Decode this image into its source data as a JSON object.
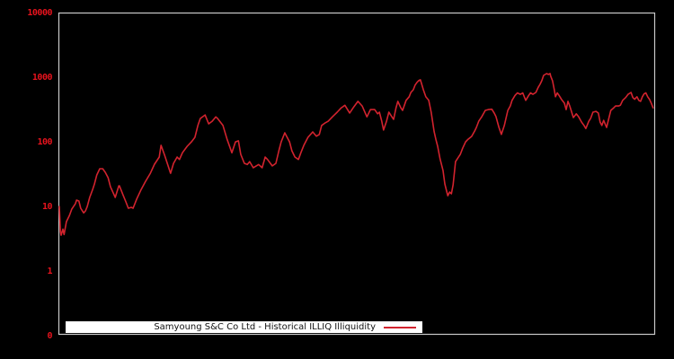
{
  "legend": {
    "label": "Samyoung S&C Co Ltd - Historical ILLIQ Illiquidity"
  },
  "colors": {
    "background": "#000000",
    "line": "#d2232e",
    "tick_label": "#e8131d",
    "plot_border": "#c9c9c9",
    "legend_bg": "#ffffff",
    "legend_text": "#111111"
  },
  "y_axis": {
    "tick_labels": [
      "10000",
      "1000",
      "100",
      "10",
      "1",
      "0"
    ]
  },
  "chart_data": {
    "type": "line",
    "title": "",
    "xlabel": "",
    "ylabel": "",
    "y_scale": "log",
    "ylim": [
      0.1,
      10000
    ],
    "yticks": [
      10000,
      1000,
      100,
      10,
      1,
      0
    ],
    "grid": false,
    "legend_position": "bottom",
    "x_unit": "percent_of_time_range",
    "series": [
      {
        "name": "Samyoung S&C Co Ltd - Historical ILLIQ Illiquidity",
        "points": [
          [
            0,
            10.3
          ],
          [
            0.2,
            4.2
          ],
          [
            0.3,
            3.7
          ],
          [
            0.6,
            4.6
          ],
          [
            0.8,
            3.8
          ],
          [
            1.2,
            6
          ],
          [
            1.7,
            7.5
          ],
          [
            2.1,
            9.4
          ],
          [
            2.7,
            11.4
          ],
          [
            2.9,
            12.9
          ],
          [
            3.3,
            12.5
          ],
          [
            3.6,
            9.7
          ],
          [
            4.1,
            8.2
          ],
          [
            4.4,
            8.8
          ],
          [
            4.7,
            10.3
          ],
          [
            5.1,
            14.2
          ],
          [
            5.6,
            18.9
          ],
          [
            5.9,
            23
          ],
          [
            6.3,
            31.6
          ],
          [
            6.8,
            39.5
          ],
          [
            7.3,
            39.5
          ],
          [
            7.7,
            35
          ],
          [
            8.2,
            28.7
          ],
          [
            8.6,
            20.8
          ],
          [
            9.2,
            15.7
          ],
          [
            9.4,
            14.2
          ],
          [
            10,
            21.5
          ],
          [
            10.1,
            21.5
          ],
          [
            10.7,
            15.7
          ],
          [
            11.2,
            12.1
          ],
          [
            11.6,
            9.7
          ],
          [
            12.1,
            10
          ],
          [
            12.4,
            9.7
          ],
          [
            13,
            13.4
          ],
          [
            13.7,
            18.4
          ],
          [
            14.5,
            25.3
          ],
          [
            15.3,
            33.6
          ],
          [
            16,
            46.4
          ],
          [
            16.8,
            60
          ],
          [
            17.1,
            91
          ],
          [
            17.7,
            64
          ],
          [
            18.3,
            43.7
          ],
          [
            18.7,
            33.6
          ],
          [
            19.2,
            47.9
          ],
          [
            19.8,
            60
          ],
          [
            20.2,
            55
          ],
          [
            20.7,
            70
          ],
          [
            21.5,
            88
          ],
          [
            22.2,
            103
          ],
          [
            22.8,
            121
          ],
          [
            23.3,
            185
          ],
          [
            23.7,
            237
          ],
          [
            24.5,
            269
          ],
          [
            25.1,
            196
          ],
          [
            25.7,
            215
          ],
          [
            26.3,
            251
          ],
          [
            26.6,
            237
          ],
          [
            27.5,
            185
          ],
          [
            28.2,
            113
          ],
          [
            29,
            70
          ],
          [
            29.6,
            103
          ],
          [
            30.1,
            107
          ],
          [
            30.5,
            66
          ],
          [
            31.1,
            48
          ],
          [
            31.6,
            46
          ],
          [
            32,
            51
          ],
          [
            32.6,
            41
          ],
          [
            33.1,
            43.7
          ],
          [
            33.5,
            46
          ],
          [
            34.1,
            41
          ],
          [
            34.6,
            60
          ],
          [
            35,
            55
          ],
          [
            35.8,
            43.7
          ],
          [
            36.4,
            48
          ],
          [
            36.9,
            75
          ],
          [
            37.3,
            103
          ],
          [
            37.9,
            142
          ],
          [
            38.7,
            103
          ],
          [
            39.1,
            75
          ],
          [
            39.6,
            60
          ],
          [
            40.2,
            55
          ],
          [
            40.6,
            70
          ],
          [
            41.1,
            91
          ],
          [
            41.8,
            121
          ],
          [
            42.6,
            147
          ],
          [
            43.2,
            126
          ],
          [
            43.7,
            134
          ],
          [
            44.1,
            185
          ],
          [
            44.7,
            203
          ],
          [
            45.2,
            215
          ],
          [
            45.9,
            251
          ],
          [
            46.7,
            297
          ],
          [
            47.4,
            347
          ],
          [
            48,
            380
          ],
          [
            48.8,
            288
          ],
          [
            49.5,
            358
          ],
          [
            50.2,
            437
          ],
          [
            50.9,
            370
          ],
          [
            51.7,
            251
          ],
          [
            52.3,
            325
          ],
          [
            53,
            325
          ],
          [
            53.5,
            280
          ],
          [
            53.8,
            297
          ],
          [
            54.2,
            215
          ],
          [
            54.5,
            157
          ],
          [
            55,
            215
          ],
          [
            55.4,
            297
          ],
          [
            55.9,
            251
          ],
          [
            56.2,
            230
          ],
          [
            56.6,
            347
          ],
          [
            56.9,
            437
          ],
          [
            57.4,
            347
          ],
          [
            57.7,
            316
          ],
          [
            58.3,
            453
          ],
          [
            58.8,
            514
          ],
          [
            59.1,
            600
          ],
          [
            59.5,
            660
          ],
          [
            59.8,
            779
          ],
          [
            60.1,
            855
          ],
          [
            60.4,
            910
          ],
          [
            60.7,
            940
          ],
          [
            61.2,
            660
          ],
          [
            61.6,
            514
          ],
          [
            62.1,
            453
          ],
          [
            62.5,
            297
          ],
          [
            63,
            148
          ],
          [
            63.3,
            113
          ],
          [
            63.6,
            88
          ],
          [
            64,
            56
          ],
          [
            64.5,
            37
          ],
          [
            64.8,
            23
          ],
          [
            65.1,
            17.8
          ],
          [
            65.3,
            15.1
          ],
          [
            65.6,
            17.2
          ],
          [
            65.9,
            16.2
          ],
          [
            66.2,
            22.3
          ],
          [
            66.6,
            51
          ],
          [
            67.1,
            60
          ],
          [
            67.4,
            66
          ],
          [
            67.8,
            82
          ],
          [
            68.3,
            103
          ],
          [
            68.7,
            113
          ],
          [
            69.3,
            125
          ],
          [
            69.8,
            151
          ],
          [
            70.1,
            172
          ],
          [
            70.5,
            215
          ],
          [
            71,
            251
          ],
          [
            71.6,
            316
          ],
          [
            72.1,
            325
          ],
          [
            72.7,
            330
          ],
          [
            73.1,
            288
          ],
          [
            73.4,
            254
          ],
          [
            73.9,
            172
          ],
          [
            74.3,
            134
          ],
          [
            74.8,
            185
          ],
          [
            75.4,
            316
          ],
          [
            75.8,
            370
          ],
          [
            76.1,
            453
          ],
          [
            76.6,
            540
          ],
          [
            77,
            590
          ],
          [
            77.5,
            560
          ],
          [
            77.9,
            590
          ],
          [
            78.4,
            453
          ],
          [
            78.9,
            540
          ],
          [
            79.2,
            590
          ],
          [
            79.6,
            560
          ],
          [
            80.1,
            600
          ],
          [
            80.5,
            720
          ],
          [
            80.8,
            800
          ],
          [
            81.1,
            910
          ],
          [
            81.4,
            1100
          ],
          [
            81.9,
            1174
          ],
          [
            82.2,
            1140
          ],
          [
            82.5,
            1174
          ],
          [
            82.6,
            1070
          ],
          [
            82.9,
            910
          ],
          [
            83.2,
            660
          ],
          [
            83.4,
            514
          ],
          [
            83.7,
            590
          ],
          [
            84,
            540
          ],
          [
            84.4,
            470
          ],
          [
            84.9,
            410
          ],
          [
            85.2,
            325
          ],
          [
            85.5,
            437
          ],
          [
            85.8,
            370
          ],
          [
            86.4,
            245
          ],
          [
            86.9,
            280
          ],
          [
            87.3,
            251
          ],
          [
            87.8,
            208
          ],
          [
            88.2,
            185
          ],
          [
            88.5,
            166
          ],
          [
            89,
            215
          ],
          [
            89.3,
            237
          ],
          [
            89.7,
            297
          ],
          [
            90.2,
            305
          ],
          [
            90.6,
            288
          ],
          [
            90.9,
            208
          ],
          [
            91.2,
            185
          ],
          [
            91.5,
            222
          ],
          [
            92,
            172
          ],
          [
            92.4,
            245
          ],
          [
            92.7,
            316
          ],
          [
            93.2,
            347
          ],
          [
            93.5,
            370
          ],
          [
            94,
            370
          ],
          [
            94.3,
            380
          ],
          [
            94.7,
            453
          ],
          [
            95.2,
            500
          ],
          [
            95.6,
            560
          ],
          [
            96.1,
            600
          ],
          [
            96.4,
            500
          ],
          [
            96.7,
            470
          ],
          [
            97.1,
            514
          ],
          [
            97.4,
            453
          ],
          [
            97.7,
            437
          ],
          [
            98,
            514
          ],
          [
            98.3,
            570
          ],
          [
            98.6,
            590
          ],
          [
            98.9,
            514
          ],
          [
            99.2,
            470
          ],
          [
            99.5,
            410
          ],
          [
            99.8,
            347
          ]
        ]
      }
    ]
  }
}
